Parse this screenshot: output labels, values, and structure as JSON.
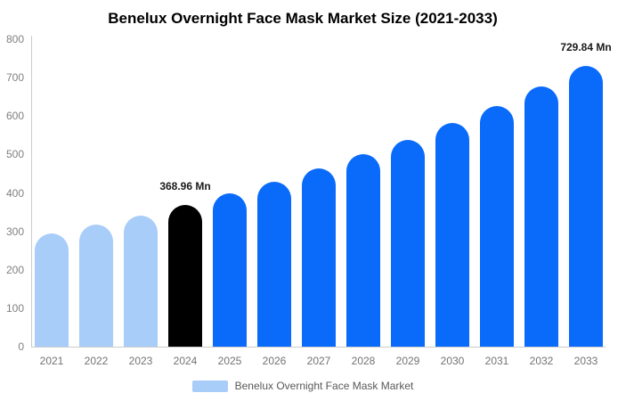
{
  "legend": {
    "label": "Benelux Overnight Face Mask Market"
  },
  "chart_data": {
    "type": "bar",
    "title": "Benelux Overnight Face Mask Market Size (2021-2033)",
    "categories": [
      "2021",
      "2022",
      "2023",
      "2024",
      "2025",
      "2026",
      "2027",
      "2028",
      "2029",
      "2030",
      "2031",
      "2032",
      "2033"
    ],
    "values": [
      294,
      317,
      342,
      368.96,
      398,
      429,
      463,
      500,
      539,
      581,
      627,
      677,
      729.84
    ],
    "unit": "Mn",
    "bar_roles": [
      "historical",
      "historical",
      "historical",
      "base_year",
      "forecast",
      "forecast",
      "forecast",
      "forecast",
      "forecast",
      "forecast",
      "forecast",
      "forecast",
      "forecast"
    ],
    "palette": {
      "historical": "#a8cdf8",
      "base_year": "#000000",
      "forecast": "#0a6bfa"
    },
    "axis_line_color": "#cccccc",
    "ylim": [
      0,
      800
    ],
    "yticks": [
      0,
      100,
      200,
      300,
      400,
      500,
      600,
      700,
      800
    ],
    "grid": false,
    "legend_position": "bottom",
    "annotations": [
      {
        "category": "2024",
        "text": "368.96 Mn"
      },
      {
        "category": "2033",
        "text": "729.84 Mn"
      }
    ]
  }
}
